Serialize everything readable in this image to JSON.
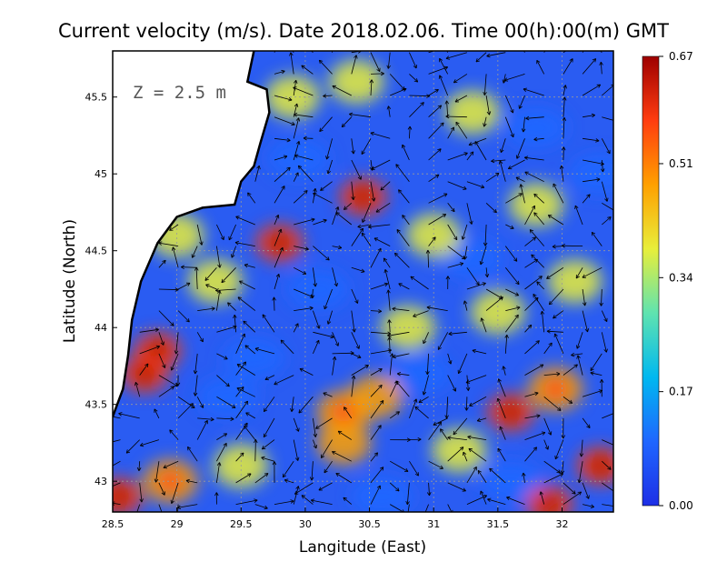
{
  "chart_data": {
    "type": "heatmap",
    "title": "Current velocity (m/s). Date 2018.02.06. Time 00(h):00(m) GMT",
    "xlabel": "Langitude (East)",
    "ylabel": "Latitude (North)",
    "depth_label": "Z = 2.5 m",
    "xlim": [
      28.5,
      32.4
    ],
    "ylim": [
      42.8,
      45.8
    ],
    "x_ticks": [
      {
        "value": 28.5,
        "label": "28.5"
      },
      {
        "value": 29,
        "label": "29"
      },
      {
        "value": 29.5,
        "label": "29.5"
      },
      {
        "value": 30,
        "label": "30"
      },
      {
        "value": 30.5,
        "label": "30.5"
      },
      {
        "value": 31,
        "label": "31"
      },
      {
        "value": 31.5,
        "label": "31.5"
      },
      {
        "value": 32,
        "label": "32"
      }
    ],
    "y_ticks": [
      {
        "value": 43,
        "label": "43"
      },
      {
        "value": 43.5,
        "label": "43.5"
      },
      {
        "value": 44,
        "label": "44"
      },
      {
        "value": 44.5,
        "label": "44.5"
      },
      {
        "value": 45,
        "label": "45"
      },
      {
        "value": 45.5,
        "label": "45.5"
      }
    ],
    "colorbar": {
      "min": 0.0,
      "max": 0.67,
      "ticks": [
        {
          "value": 0.67,
          "label": "0.67"
        },
        {
          "value": 0.51,
          "label": "0.51"
        },
        {
          "value": 0.34,
          "label": "0.34"
        },
        {
          "value": 0.17,
          "label": "0.17"
        },
        {
          "value": 0.0,
          "label": "0.00"
        }
      ],
      "colors": [
        "#1e2fe6",
        "#1f66ff",
        "#00b8f0",
        "#5fe3b0",
        "#e8ee3a",
        "#ffa000",
        "#ff3d10",
        "#9e0000"
      ]
    },
    "grid": true,
    "land_color": "#ffffff",
    "coastline_color": "#000000",
    "hotspots": [
      {
        "lon": 30.45,
        "lat": 44.85,
        "speed": 0.58
      },
      {
        "lon": 29.8,
        "lat": 44.55,
        "speed": 0.55
      },
      {
        "lon": 28.85,
        "lat": 43.85,
        "speed": 0.6
      },
      {
        "lon": 28.75,
        "lat": 43.7,
        "speed": 0.55
      },
      {
        "lon": 30.3,
        "lat": 43.45,
        "speed": 0.48
      },
      {
        "lon": 30.55,
        "lat": 43.55,
        "speed": 0.45
      },
      {
        "lon": 30.3,
        "lat": 43.25,
        "speed": 0.45
      },
      {
        "lon": 31.6,
        "lat": 43.45,
        "speed": 0.6
      },
      {
        "lon": 31.95,
        "lat": 43.6,
        "speed": 0.5
      },
      {
        "lon": 31.9,
        "lat": 42.85,
        "speed": 0.6
      },
      {
        "lon": 32.3,
        "lat": 43.1,
        "speed": 0.55
      },
      {
        "lon": 28.55,
        "lat": 42.9,
        "speed": 0.62
      },
      {
        "lon": 28.95,
        "lat": 43.0,
        "speed": 0.5
      },
      {
        "lon": 30.4,
        "lat": 45.6,
        "speed": 0.42
      },
      {
        "lon": 31.3,
        "lat": 45.4,
        "speed": 0.4
      },
      {
        "lon": 29.9,
        "lat": 45.5,
        "speed": 0.38
      },
      {
        "lon": 31.8,
        "lat": 44.8,
        "speed": 0.4
      },
      {
        "lon": 31.0,
        "lat": 44.6,
        "speed": 0.36
      },
      {
        "lon": 29.3,
        "lat": 44.3,
        "speed": 0.4
      },
      {
        "lon": 31.5,
        "lat": 44.1,
        "speed": 0.4
      },
      {
        "lon": 30.8,
        "lat": 44.0,
        "speed": 0.34
      },
      {
        "lon": 29.5,
        "lat": 43.1,
        "speed": 0.36
      },
      {
        "lon": 31.2,
        "lat": 43.2,
        "speed": 0.4
      },
      {
        "lon": 32.1,
        "lat": 44.3,
        "speed": 0.36
      },
      {
        "lon": 29.0,
        "lat": 44.6,
        "speed": 0.34
      }
    ],
    "calm_areas": [
      {
        "lon": 30.1,
        "lat": 44.25,
        "speed": 0.05
      },
      {
        "lon": 31.3,
        "lat": 44.45,
        "speed": 0.05
      },
      {
        "lon": 29.6,
        "lat": 43.8,
        "speed": 0.06
      },
      {
        "lon": 29.4,
        "lat": 43.55,
        "speed": 0.06
      },
      {
        "lon": 31.8,
        "lat": 45.3,
        "speed": 0.06
      },
      {
        "lon": 30.9,
        "lat": 43.7,
        "speed": 0.06
      },
      {
        "lon": 31.6,
        "lat": 43.0,
        "speed": 0.05
      },
      {
        "lon": 30.6,
        "lat": 42.9,
        "speed": 0.07
      },
      {
        "lon": 32.3,
        "lat": 45.0,
        "speed": 0.08
      },
      {
        "lon": 29.95,
        "lat": 45.1,
        "speed": 0.08
      }
    ],
    "coastline": [
      {
        "lon": 29.6,
        "lat": 45.8
      },
      {
        "lon": 29.55,
        "lat": 45.6
      },
      {
        "lon": 29.7,
        "lat": 45.55
      },
      {
        "lon": 29.72,
        "lat": 45.4
      },
      {
        "lon": 29.65,
        "lat": 45.2
      },
      {
        "lon": 29.6,
        "lat": 45.05
      },
      {
        "lon": 29.5,
        "lat": 44.95
      },
      {
        "lon": 29.45,
        "lat": 44.8
      },
      {
        "lon": 29.2,
        "lat": 44.78
      },
      {
        "lon": 29.0,
        "lat": 44.72
      },
      {
        "lon": 28.85,
        "lat": 44.55
      },
      {
        "lon": 28.72,
        "lat": 44.3
      },
      {
        "lon": 28.65,
        "lat": 44.05
      },
      {
        "lon": 28.62,
        "lat": 43.82
      },
      {
        "lon": 28.58,
        "lat": 43.6
      },
      {
        "lon": 28.5,
        "lat": 43.42
      }
    ]
  }
}
